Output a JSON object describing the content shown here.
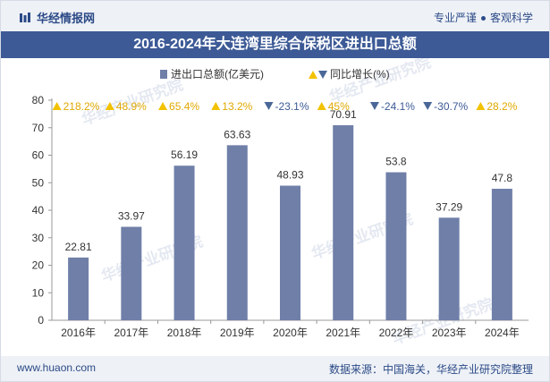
{
  "header": {
    "brand": "华经情报网",
    "slogan_left": "专业严谨",
    "slogan_right": "客观科学"
  },
  "title": "2016-2024年大连湾里综合保税区进出口总额",
  "legend": {
    "bar_label": "进出口总额(亿美元)",
    "line_label": "同比增长(%)"
  },
  "footer": {
    "website": "www.huaon.com",
    "source": "数据来源：中国海关，华经产业研究院整理"
  },
  "watermark": "华经产业研究院",
  "colors": {
    "bar": "#6f7fa8",
    "up": "#f2c200",
    "down": "#4a6797",
    "title_bg": "#3d5a96"
  },
  "chart_data": {
    "type": "bar",
    "title": "2016-2024年大连湾里综合保税区进出口总额",
    "categories": [
      "2016年",
      "2017年",
      "2018年",
      "2019年",
      "2020年",
      "2021年",
      "2022年",
      "2023年",
      "2024年"
    ],
    "series": [
      {
        "name": "进出口总额(亿美元)",
        "values": [
          22.81,
          33.97,
          56.19,
          63.63,
          48.93,
          70.91,
          53.8,
          37.29,
          47.8
        ]
      }
    ],
    "value_labels": [
      "22.81",
      "33.97",
      "56.19",
      "63.63",
      "48.93",
      "70.91",
      "53.8",
      "37.29",
      "47.8"
    ],
    "growth": {
      "name": "同比增长(%)",
      "values": [
        218.2,
        48.9,
        65.4,
        13.2,
        -23.1,
        45,
        -24.1,
        -30.7,
        28.2
      ],
      "labels": [
        "218.2%",
        "48.9%",
        "65.4%",
        "13.2%",
        "-23.1%",
        "45%",
        "-24.1%",
        "-30.7%",
        "28.2%"
      ]
    },
    "ylim": [
      0,
      80
    ],
    "yticks": [
      0,
      10,
      20,
      30,
      40,
      50,
      60,
      70,
      80
    ],
    "grid": false,
    "legend_position": "top"
  }
}
